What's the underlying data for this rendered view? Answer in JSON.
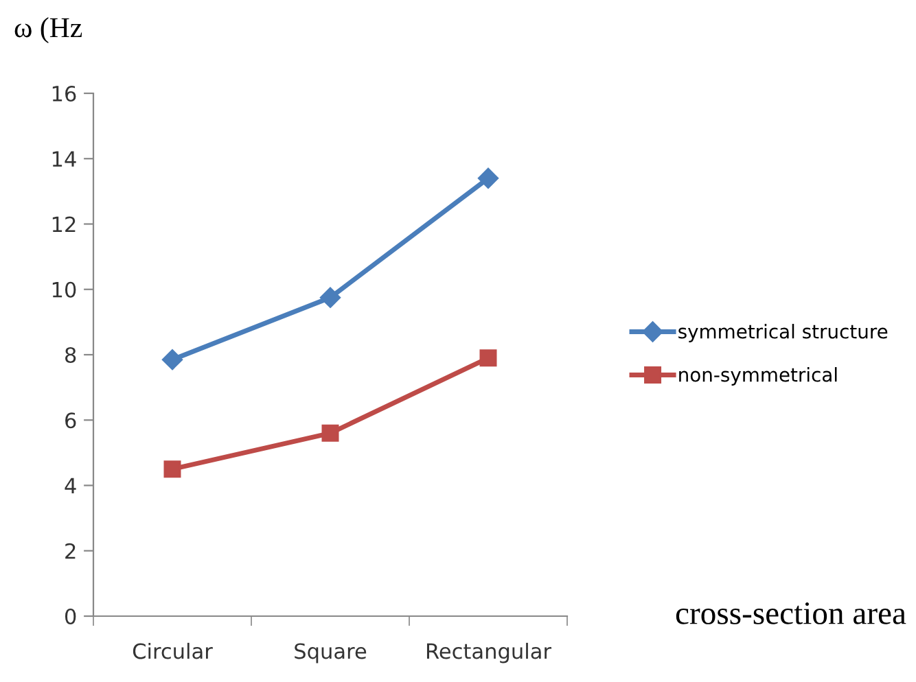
{
  "chart_data": {
    "type": "line",
    "ylabel": "ω (Hz",
    "xlabel": "cross-section area",
    "categories": [
      "Circular",
      "Square",
      "Rectangular"
    ],
    "series": [
      {
        "name": "symmetrical structure",
        "color": "#4a7ebb",
        "marker": "diamond",
        "values": [
          7.85,
          9.75,
          13.4
        ]
      },
      {
        "name": "non-symmetrical",
        "color": "#be4b48",
        "marker": "square",
        "values": [
          4.5,
          5.6,
          7.9
        ]
      }
    ],
    "ylim": [
      0,
      16
    ],
    "yticks": [
      0,
      2,
      4,
      6,
      8,
      10,
      12,
      14,
      16
    ],
    "grid": false,
    "legend": "right"
  }
}
